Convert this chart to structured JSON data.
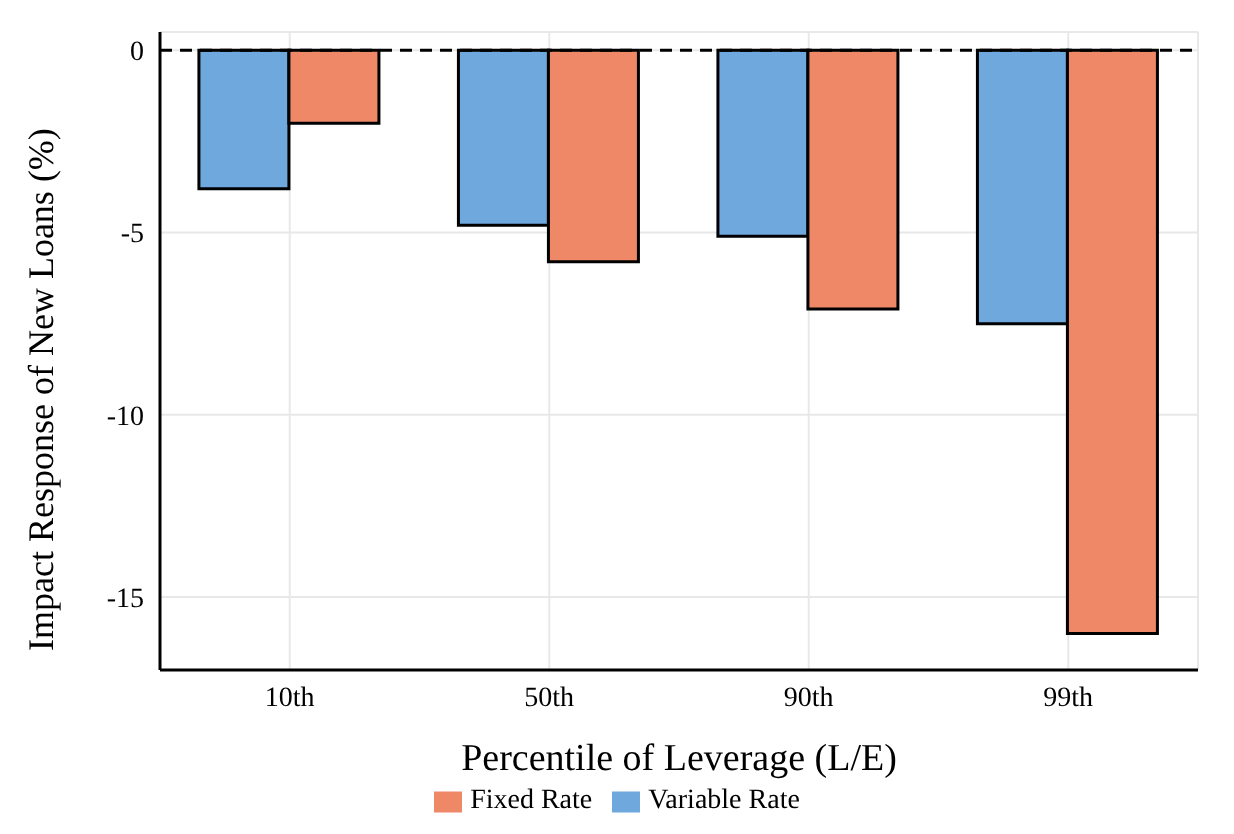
{
  "chart_data": {
    "type": "bar",
    "xlabel": "Percentile of Leverage (L/E)",
    "ylabel": "Impact Response of New Loans (%)",
    "categories": [
      "10th",
      "50th",
      "90th",
      "99th"
    ],
    "series": [
      {
        "name": "Variable Rate",
        "color": "#6fa8dc",
        "values": [
          -3.8,
          -4.8,
          -5.1,
          -7.5
        ]
      },
      {
        "name": "Fixed Rate",
        "color": "#ee8866",
        "values": [
          -2.0,
          -5.8,
          -7.1,
          -16.0
        ]
      }
    ],
    "ylim": [
      -17,
      0.5
    ],
    "yticks": [
      -15,
      -10,
      -5,
      0
    ],
    "grid": true,
    "legend": "bottom",
    "ref_lines": [
      {
        "axis": "y",
        "value": 0,
        "color": "#000000",
        "line_style": "dashed"
      }
    ]
  }
}
